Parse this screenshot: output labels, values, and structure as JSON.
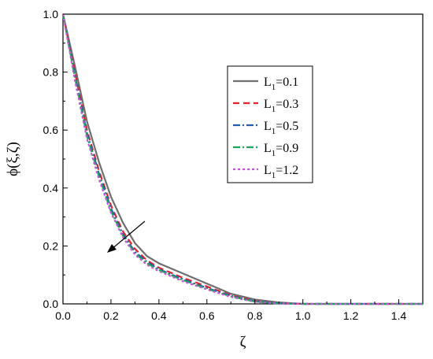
{
  "chart_data": {
    "type": "line",
    "title": "",
    "xlabel": "ζ",
    "ylabel": "ϕ(ξ,ζ)",
    "xlim": [
      0.0,
      1.5
    ],
    "ylim": [
      0.0,
      1.0
    ],
    "xticks": [
      "0.0",
      "0.2",
      "0.4",
      "0.6",
      "0.8",
      "1.0",
      "1.2",
      "1.4"
    ],
    "yticks": [
      "0.0",
      "0.2",
      "0.4",
      "0.6",
      "0.8",
      "1.0"
    ],
    "grid": false,
    "legend_position": "upper-right",
    "annotation": "arrow indicating increasing L1 (curves shift down-left)",
    "series": [
      {
        "name": "L1=0.1",
        "color": "#6e6e6e",
        "dash": "solid",
        "x": [
          0.0,
          0.05,
          0.1,
          0.15,
          0.2,
          0.25,
          0.3,
          0.35,
          0.4,
          0.5,
          0.6,
          0.7,
          0.8,
          0.9,
          1.0,
          1.2,
          1.5
        ],
        "y": [
          1.0,
          0.82,
          0.63,
          0.49,
          0.37,
          0.28,
          0.21,
          0.165,
          0.14,
          0.105,
          0.07,
          0.035,
          0.015,
          0.005,
          0.0,
          0.0,
          0.0
        ]
      },
      {
        "name": "L1=0.3",
        "color": "#e8202a",
        "dash": "8,5",
        "x": [
          0.0,
          0.05,
          0.1,
          0.15,
          0.2,
          0.25,
          0.3,
          0.35,
          0.4,
          0.5,
          0.6,
          0.7,
          0.8,
          0.9,
          1.0,
          1.2,
          1.5
        ],
        "y": [
          1.0,
          0.8,
          0.6,
          0.46,
          0.34,
          0.25,
          0.19,
          0.15,
          0.125,
          0.09,
          0.06,
          0.03,
          0.01,
          0.002,
          0.0,
          0.0,
          0.0
        ]
      },
      {
        "name": "L1=0.5",
        "color": "#1f5fb0",
        "dash": "9,3,2,3",
        "x": [
          0.0,
          0.05,
          0.1,
          0.15,
          0.2,
          0.25,
          0.3,
          0.35,
          0.4,
          0.5,
          0.6,
          0.7,
          0.8,
          0.9,
          1.0,
          1.2,
          1.5
        ],
        "y": [
          1.0,
          0.79,
          0.59,
          0.45,
          0.33,
          0.24,
          0.18,
          0.145,
          0.12,
          0.085,
          0.055,
          0.028,
          0.009,
          0.002,
          0.0,
          0.0,
          0.0
        ]
      },
      {
        "name": "L1=0.9",
        "color": "#1aa35a",
        "dash": "9,3,2,3",
        "x": [
          0.0,
          0.05,
          0.1,
          0.15,
          0.2,
          0.25,
          0.3,
          0.35,
          0.4,
          0.5,
          0.6,
          0.7,
          0.8,
          0.9,
          1.0,
          1.2,
          1.5
        ],
        "y": [
          1.0,
          0.78,
          0.58,
          0.44,
          0.32,
          0.235,
          0.175,
          0.14,
          0.117,
          0.082,
          0.052,
          0.026,
          0.008,
          0.001,
          0.0,
          0.0,
          0.0
        ]
      },
      {
        "name": "L1=1.2",
        "color": "#c355d8",
        "dash": "3,3",
        "x": [
          0.0,
          0.05,
          0.1,
          0.15,
          0.2,
          0.25,
          0.3,
          0.35,
          0.4,
          0.5,
          0.6,
          0.7,
          0.8,
          0.9,
          1.0,
          1.2,
          1.5
        ],
        "y": [
          1.0,
          0.77,
          0.57,
          0.43,
          0.315,
          0.23,
          0.17,
          0.135,
          0.113,
          0.078,
          0.05,
          0.024,
          0.007,
          0.001,
          0.0,
          0.0,
          0.0
        ]
      }
    ],
    "legend_labels": [
      {
        "base": "L",
        "sub": "1",
        "value": "=0.1"
      },
      {
        "base": "L",
        "sub": "1",
        "value": "=0.3"
      },
      {
        "base": "L",
        "sub": "1",
        "value": "=0.5"
      },
      {
        "base": "L",
        "sub": "1",
        "value": "=0.9"
      },
      {
        "base": "L",
        "sub": "1",
        "value": "=1.2"
      }
    ]
  }
}
